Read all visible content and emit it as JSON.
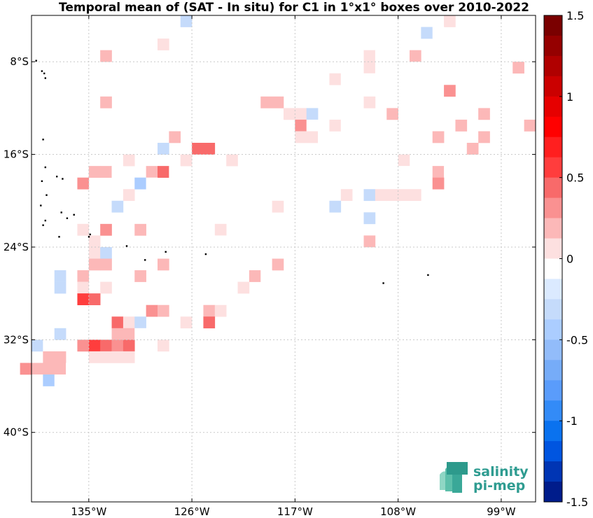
{
  "chart_data": {
    "type": "heatmap",
    "title": "Temporal mean of (SAT - In situ) for C1 in 1°x1° boxes over 2010-2022",
    "xlabel": "",
    "ylabel": "",
    "x_range_deg": [
      -140,
      -96
    ],
    "y_range_deg": [
      -46,
      -4
    ],
    "x_ticks": [
      {
        "value": -135,
        "label": "135°W"
      },
      {
        "value": -126,
        "label": "126°W"
      },
      {
        "value": -117,
        "label": "117°W"
      },
      {
        "value": -108,
        "label": "108°W"
      },
      {
        "value": -99,
        "label": "99°W"
      }
    ],
    "y_ticks": [
      {
        "value": -8,
        "label": "8°S"
      },
      {
        "value": -16,
        "label": "16°S"
      },
      {
        "value": -24,
        "label": "24°S"
      },
      {
        "value": -32,
        "label": "32°S"
      },
      {
        "value": -40,
        "label": "40°S"
      }
    ],
    "grid": true,
    "colorbar": {
      "min": -1.5,
      "max": 1.5,
      "levels": 24,
      "tick_values": [
        1.5,
        1,
        0.5,
        0,
        -0.5,
        -1,
        -1.5
      ],
      "tick_labels": [
        "1.5",
        "1",
        "0.5",
        "0",
        "-0.5",
        "-1",
        "-1.5"
      ],
      "colors_top_to_bottom": [
        "#7a0000",
        "#950000",
        "#b00000",
        "#cb0000",
        "#e60000",
        "#ff0000",
        "#ff1f1f",
        "#ff3d3d",
        "#f86a6a",
        "#fa9191",
        "#fcb8b8",
        "#fde0e0",
        "#ffffff",
        "#dbeaff",
        "#c5dbfb",
        "#abcdff",
        "#92bcfa",
        "#76acf8",
        "#5a9cfb",
        "#338bf7",
        "#0a72ef",
        "#0055e0",
        "#0035b4",
        "#001c8b"
      ]
    },
    "cells": [
      {
        "lon": -126.5,
        "lat": -4.5,
        "value": -0.25
      },
      {
        "lon": -123.5,
        "lat": -4.5,
        "value": -0.05
      },
      {
        "lon": -104.5,
        "lat": -4.5,
        "value": -0.1
      },
      {
        "lon": -103.5,
        "lat": -4.5,
        "value": 0.05
      },
      {
        "lon": -105.5,
        "lat": -5.5,
        "value": -0.3
      },
      {
        "lon": -104.5,
        "lat": -5.5,
        "value": -0.1
      },
      {
        "lon": -130.5,
        "lat": -6.5,
        "value": -0.1
      },
      {
        "lon": -128.5,
        "lat": -6.5,
        "value": 0.1
      },
      {
        "lon": -112.5,
        "lat": -7.5,
        "value": -0.1
      },
      {
        "lon": -110.5,
        "lat": -7.5,
        "value": 0.1
      },
      {
        "lon": -109.5,
        "lat": -7.5,
        "value": -0.1
      },
      {
        "lon": -106.5,
        "lat": -7.5,
        "value": 0.25
      },
      {
        "lon": -133.5,
        "lat": -7.5,
        "value": 0.15
      },
      {
        "lon": -102.5,
        "lat": -7.5,
        "value": -0.05
      },
      {
        "lon": -97.5,
        "lat": -8.5,
        "value": 0.15
      },
      {
        "lon": -111.5,
        "lat": -8.5,
        "value": -0.1
      },
      {
        "lon": -110.5,
        "lat": -8.5,
        "value": 0.1
      },
      {
        "lon": -109.5,
        "lat": -8.5,
        "value": -0.1
      },
      {
        "lon": -107.5,
        "lat": -8.5,
        "value": -0.05
      },
      {
        "lon": -106.5,
        "lat": -8.5,
        "value": -0.1
      },
      {
        "lon": -113.5,
        "lat": -9.5,
        "value": 0.1
      },
      {
        "lon": -112.5,
        "lat": -9.5,
        "value": -0.05
      },
      {
        "lon": -111.5,
        "lat": -9.5,
        "value": -0.1
      },
      {
        "lon": -110.5,
        "lat": -9.5,
        "value": -0.1
      },
      {
        "lon": -115.5,
        "lat": -10.5,
        "value": -0.1
      },
      {
        "lon": -110.5,
        "lat": -10.5,
        "value": -0.1
      },
      {
        "lon": -103.5,
        "lat": -10.5,
        "value": 0.3
      },
      {
        "lon": -99.5,
        "lat": -10.5,
        "value": -0.1
      },
      {
        "lon": -97.5,
        "lat": -10.5,
        "value": -0.1
      },
      {
        "lon": -119.5,
        "lat": -11.5,
        "value": 0.25
      },
      {
        "lon": -118.5,
        "lat": -11.5,
        "value": 0.25
      },
      {
        "lon": -133.5,
        "lat": -11.5,
        "value": 0.15
      },
      {
        "lon": -110.5,
        "lat": -11.5,
        "value": 0.1
      },
      {
        "lon": -117.5,
        "lat": -12.5,
        "value": 0.1
      },
      {
        "lon": -116.5,
        "lat": -12.5,
        "value": 0.05
      },
      {
        "lon": -115.5,
        "lat": -12.5,
        "value": -0.3
      },
      {
        "lon": -108.5,
        "lat": -12.5,
        "value": 0.15
      },
      {
        "lon": -100.5,
        "lat": -12.5,
        "value": 0.15
      },
      {
        "lon": -126.5,
        "lat": -13.5,
        "value": -0.05
      },
      {
        "lon": -125.5,
        "lat": -13.5,
        "value": -0.05
      },
      {
        "lon": -124.5,
        "lat": -13.5,
        "value": -0.05
      },
      {
        "lon": -123.5,
        "lat": -13.5,
        "value": -0.05
      },
      {
        "lon": -118.5,
        "lat": -13.5,
        "value": -0.1
      },
      {
        "lon": -116.5,
        "lat": -13.5,
        "value": 0.3
      },
      {
        "lon": -115.5,
        "lat": -13.5,
        "value": -0.1
      },
      {
        "lon": -113.5,
        "lat": -13.5,
        "value": 0.1
      },
      {
        "lon": -112.5,
        "lat": -13.5,
        "value": -0.1
      },
      {
        "lon": -111.5,
        "lat": -13.5,
        "value": -0.1
      },
      {
        "lon": -105.5,
        "lat": -13.5,
        "value": -0.05
      },
      {
        "lon": -102.5,
        "lat": -13.5,
        "value": 0.15
      },
      {
        "lon": -96.5,
        "lat": -13.5,
        "value": 0.15
      },
      {
        "lon": -127.5,
        "lat": -14.5,
        "value": 0.15
      },
      {
        "lon": -116.5,
        "lat": -14.5,
        "value": 0.1
      },
      {
        "lon": -115.5,
        "lat": -14.5,
        "value": 0.1
      },
      {
        "lon": -114.5,
        "lat": -14.5,
        "value": -0.1
      },
      {
        "lon": -104.5,
        "lat": -14.5,
        "value": 0.15
      },
      {
        "lon": -100.5,
        "lat": -14.5,
        "value": 0.15
      },
      {
        "lon": -129.5,
        "lat": -15.5,
        "value": -0.1
      },
      {
        "lon": -128.5,
        "lat": -15.5,
        "value": -0.3
      },
      {
        "lon": -126.5,
        "lat": -15.5,
        "value": -0.05
      },
      {
        "lon": -125.5,
        "lat": -15.5,
        "value": 0.4
      },
      {
        "lon": -124.5,
        "lat": -15.5,
        "value": 0.4
      },
      {
        "lon": -121.5,
        "lat": -15.5,
        "value": -0.1
      },
      {
        "lon": -109.5,
        "lat": -15.5,
        "value": -0.1
      },
      {
        "lon": -101.5,
        "lat": -15.5,
        "value": 0.15
      },
      {
        "lon": -131.5,
        "lat": -16.5,
        "value": 0.1
      },
      {
        "lon": -127.5,
        "lat": -16.5,
        "value": -0.1
      },
      {
        "lon": -126.5,
        "lat": -16.5,
        "value": 0.1
      },
      {
        "lon": -122.5,
        "lat": -16.5,
        "value": 0.1
      },
      {
        "lon": -119.5,
        "lat": -16.5,
        "value": -0.1
      },
      {
        "lon": -107.5,
        "lat": -16.5,
        "value": 0.1
      },
      {
        "lon": -134.5,
        "lat": -17.5,
        "value": 0.15
      },
      {
        "lon": -133.5,
        "lat": -17.5,
        "value": 0.15
      },
      {
        "lon": -132.5,
        "lat": -17.5,
        "value": -0.1
      },
      {
        "lon": -129.5,
        "lat": -17.5,
        "value": 0.15
      },
      {
        "lon": -128.5,
        "lat": -17.5,
        "value": 0.45
      },
      {
        "lon": -127.5,
        "lat": -17.5,
        "value": -0.05
      },
      {
        "lon": -107.5,
        "lat": -17.5,
        "value": -0.05
      },
      {
        "lon": -104.5,
        "lat": -17.5,
        "value": 0.15
      },
      {
        "lon": -103.5,
        "lat": -17.5,
        "value": -0.1
      },
      {
        "lon": -135.5,
        "lat": -18.5,
        "value": 0.35
      },
      {
        "lon": -130.5,
        "lat": -18.5,
        "value": -0.4
      },
      {
        "lon": -129.5,
        "lat": -18.5,
        "value": -0.1
      },
      {
        "lon": -104.5,
        "lat": -18.5,
        "value": 0.3
      },
      {
        "lon": -138.5,
        "lat": -19.5,
        "value": -0.1
      },
      {
        "lon": -131.5,
        "lat": -19.5,
        "value": 0.1
      },
      {
        "lon": -112.5,
        "lat": -19.5,
        "value": 0.1
      },
      {
        "lon": -110.5,
        "lat": -19.5,
        "value": -0.3
      },
      {
        "lon": -109.5,
        "lat": -19.5,
        "value": 0.1
      },
      {
        "lon": -108.5,
        "lat": -19.5,
        "value": 0.1
      },
      {
        "lon": -107.5,
        "lat": -19.5,
        "value": 0.1
      },
      {
        "lon": -106.5,
        "lat": -19.5,
        "value": 0.1
      },
      {
        "lon": -133.5,
        "lat": -20.5,
        "value": -0.1
      },
      {
        "lon": -132.5,
        "lat": -20.5,
        "value": -0.25
      },
      {
        "lon": -128.5,
        "lat": -20.5,
        "value": -0.1
      },
      {
        "lon": -127.5,
        "lat": -20.5,
        "value": -0.1
      },
      {
        "lon": -118.5,
        "lat": -20.5,
        "value": 0.1
      },
      {
        "lon": -113.5,
        "lat": -20.5,
        "value": -0.25
      },
      {
        "lon": -112.5,
        "lat": -21.5,
        "value": -0.1
      },
      {
        "lon": -111.5,
        "lat": -21.5,
        "value": -0.1
      },
      {
        "lon": -110.5,
        "lat": -21.5,
        "value": -0.25
      },
      {
        "lon": -117.5,
        "lat": -21.5,
        "value": -0.1
      },
      {
        "lon": -117.5,
        "lat": -22.5,
        "value": -0.1
      },
      {
        "lon": -135.5,
        "lat": -22.5,
        "value": 0.1
      },
      {
        "lon": -133.5,
        "lat": -22.5,
        "value": 0.35
      },
      {
        "lon": -130.5,
        "lat": -22.5,
        "value": 0.15
      },
      {
        "lon": -124.5,
        "lat": -22.5,
        "value": -0.1
      },
      {
        "lon": -123.5,
        "lat": -22.5,
        "value": 0.1
      },
      {
        "lon": -138.5,
        "lat": -23.5,
        "value": -0.1
      },
      {
        "lon": -136.5,
        "lat": -23.5,
        "value": -0.05
      },
      {
        "lon": -134.5,
        "lat": -23.5,
        "value": 0.1
      },
      {
        "lon": -124.5,
        "lat": -23.5,
        "value": -0.1
      },
      {
        "lon": -123.5,
        "lat": -23.5,
        "value": -0.1
      },
      {
        "lon": -110.5,
        "lat": -23.5,
        "value": 0.15
      },
      {
        "lon": -138.5,
        "lat": -24.5,
        "value": -0.1
      },
      {
        "lon": -136.5,
        "lat": -24.5,
        "value": -0.1
      },
      {
        "lon": -135.5,
        "lat": -24.5,
        "value": -0.1
      },
      {
        "lon": -134.5,
        "lat": -24.5,
        "value": 0.1
      },
      {
        "lon": -133.5,
        "lat": -24.5,
        "value": -0.3
      },
      {
        "lon": -122.5,
        "lat": -24.5,
        "value": -0.1
      },
      {
        "lon": -120.5,
        "lat": -24.5,
        "value": -0.05
      },
      {
        "lon": -117.5,
        "lat": -24.5,
        "value": -0.1
      },
      {
        "lon": -137.5,
        "lat": -25.5,
        "value": -0.1
      },
      {
        "lon": -135.5,
        "lat": -25.5,
        "value": -0.1
      },
      {
        "lon": -134.5,
        "lat": -25.5,
        "value": 0.15
      },
      {
        "lon": -133.5,
        "lat": -25.5,
        "value": 0.15
      },
      {
        "lon": -128.5,
        "lat": -25.5,
        "value": 0.15
      },
      {
        "lon": -122.5,
        "lat": -25.5,
        "value": -0.1
      },
      {
        "lon": -119.5,
        "lat": -25.5,
        "value": -0.1
      },
      {
        "lon": -118.5,
        "lat": -25.5,
        "value": 0.15
      },
      {
        "lon": -137.5,
        "lat": -26.5,
        "value": -0.25
      },
      {
        "lon": -135.5,
        "lat": -26.5,
        "value": 0.15
      },
      {
        "lon": -130.5,
        "lat": -26.5,
        "value": 0.15
      },
      {
        "lon": -127.5,
        "lat": -26.5,
        "value": -0.1
      },
      {
        "lon": -120.5,
        "lat": -26.5,
        "value": 0.15
      },
      {
        "lon": -119.5,
        "lat": -26.5,
        "value": -0.1
      },
      {
        "lon": -137.5,
        "lat": -27.5,
        "value": -0.25
      },
      {
        "lon": -139.5,
        "lat": -27.5,
        "value": -0.1
      },
      {
        "lon": -135.5,
        "lat": -27.5,
        "value": 0.1
      },
      {
        "lon": -133.5,
        "lat": -27.5,
        "value": 0.1
      },
      {
        "lon": -125.5,
        "lat": -27.5,
        "value": -0.1
      },
      {
        "lon": -121.5,
        "lat": -27.5,
        "value": 0.1
      },
      {
        "lon": -139.5,
        "lat": -28.5,
        "value": -0.1
      },
      {
        "lon": -135.5,
        "lat": -28.5,
        "value": 0.6
      },
      {
        "lon": -134.5,
        "lat": -28.5,
        "value": 0.4
      },
      {
        "lon": -126.5,
        "lat": -28.5,
        "value": -0.1
      },
      {
        "lon": -140.5,
        "lat": -29.5,
        "value": -0.1
      },
      {
        "lon": -129.5,
        "lat": -29.5,
        "value": 0.3
      },
      {
        "lon": -128.5,
        "lat": -29.5,
        "value": 0.15
      },
      {
        "lon": -124.5,
        "lat": -29.5,
        "value": 0.25
      },
      {
        "lon": -123.5,
        "lat": -29.5,
        "value": 0.1
      },
      {
        "lon": -135.5,
        "lat": -30.5,
        "value": -0.1
      },
      {
        "lon": -134.5,
        "lat": -30.5,
        "value": -0.1
      },
      {
        "lon": -133.5,
        "lat": -30.5,
        "value": -0.05
      },
      {
        "lon": -132.5,
        "lat": -30.5,
        "value": 0.4
      },
      {
        "lon": -131.5,
        "lat": -30.5,
        "value": 0.1
      },
      {
        "lon": -130.5,
        "lat": -30.5,
        "value": -0.25
      },
      {
        "lon": -126.5,
        "lat": -30.5,
        "value": 0.1
      },
      {
        "lon": -124.5,
        "lat": -30.5,
        "value": 0.45
      },
      {
        "lon": -137.5,
        "lat": -31.5,
        "value": -0.25
      },
      {
        "lon": -132.5,
        "lat": -31.5,
        "value": 0.15
      },
      {
        "lon": -131.5,
        "lat": -31.5,
        "value": 0.15
      },
      {
        "lon": -130.5,
        "lat": -31.5,
        "value": -0.05
      },
      {
        "lon": -139.5,
        "lat": -32.5,
        "value": -0.25
      },
      {
        "lon": -138.5,
        "lat": -32.5,
        "value": -0.05
      },
      {
        "lon": -135.5,
        "lat": -32.5,
        "value": 0.35
      },
      {
        "lon": -134.5,
        "lat": -32.5,
        "value": 0.55
      },
      {
        "lon": -133.5,
        "lat": -32.5,
        "value": 0.5
      },
      {
        "lon": -132.5,
        "lat": -32.5,
        "value": 0.35
      },
      {
        "lon": -131.5,
        "lat": -32.5,
        "value": 0.5
      },
      {
        "lon": -128.5,
        "lat": -32.5,
        "value": 0.1
      },
      {
        "lon": -138.5,
        "lat": -33.5,
        "value": 0.15
      },
      {
        "lon": -137.5,
        "lat": -33.5,
        "value": 0.15
      },
      {
        "lon": -134.5,
        "lat": -33.5,
        "value": 0.1
      },
      {
        "lon": -133.5,
        "lat": -33.5,
        "value": 0.1
      },
      {
        "lon": -132.5,
        "lat": -33.5,
        "value": 0.1
      },
      {
        "lon": -131.5,
        "lat": -33.5,
        "value": 0.1
      },
      {
        "lon": -140.5,
        "lat": -34.5,
        "value": 0.3
      },
      {
        "lon": -139.5,
        "lat": -34.5,
        "value": 0.15
      },
      {
        "lon": -138.5,
        "lat": -34.5,
        "value": 0.15
      },
      {
        "lon": -137.5,
        "lat": -34.5,
        "value": 0.15
      },
      {
        "lon": -136.5,
        "lat": -34.5,
        "value": -0.1
      },
      {
        "lon": -139.5,
        "lat": -35.5,
        "value": -0.05
      },
      {
        "lon": -138.5,
        "lat": -35.5,
        "value": -0.4
      },
      {
        "lon": -137.5,
        "lat": -35.5,
        "value": -0.05
      },
      {
        "lon": -136.5,
        "lat": -35.5,
        "value": -0.1
      }
    ],
    "land_points": [
      {
        "lon": -139.6,
        "lat": -7.9
      },
      {
        "lon": -139.1,
        "lat": -8.8
      },
      {
        "lon": -138.9,
        "lat": -9.0
      },
      {
        "lon": -138.8,
        "lat": -9.4
      },
      {
        "lon": -139.0,
        "lat": -14.7
      },
      {
        "lon": -138.8,
        "lat": -17.1
      },
      {
        "lon": -137.8,
        "lat": -17.9
      },
      {
        "lon": -137.3,
        "lat": -18.1
      },
      {
        "lon": -139.1,
        "lat": -18.3
      },
      {
        "lon": -138.7,
        "lat": -19.5
      },
      {
        "lon": -139.2,
        "lat": -20.4
      },
      {
        "lon": -137.4,
        "lat": -21.0
      },
      {
        "lon": -136.9,
        "lat": -21.5
      },
      {
        "lon": -136.3,
        "lat": -21.2
      },
      {
        "lon": -138.8,
        "lat": -21.7
      },
      {
        "lon": -139.0,
        "lat": -22.1
      },
      {
        "lon": -137.6,
        "lat": -23.1
      },
      {
        "lon": -135.0,
        "lat": -23.1
      },
      {
        "lon": -134.9,
        "lat": -22.9
      },
      {
        "lon": -130.1,
        "lat": -25.1
      },
      {
        "lon": -128.3,
        "lat": -24.4
      },
      {
        "lon": -124.8,
        "lat": -24.6
      },
      {
        "lon": -131.7,
        "lat": -23.9
      },
      {
        "lon": -109.3,
        "lat": -27.1
      },
      {
        "lon": -105.4,
        "lat": -26.4
      }
    ]
  },
  "logo": {
    "line1": "salinity",
    "line2": "pi-mep"
  }
}
